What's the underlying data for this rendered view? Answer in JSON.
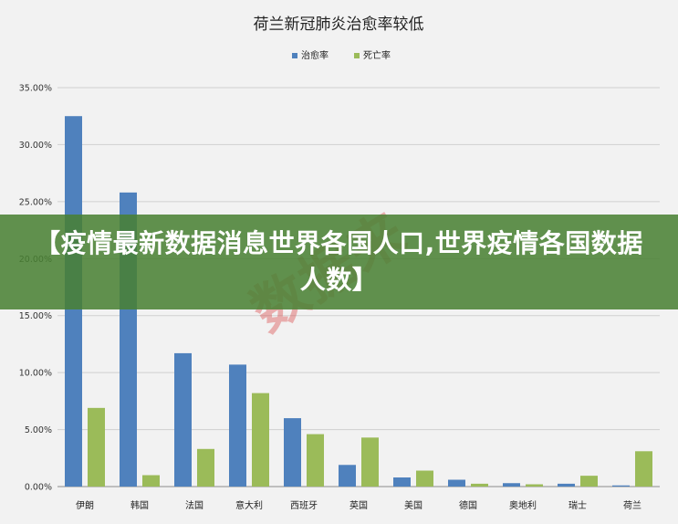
{
  "chart_data": {
    "type": "bar",
    "title": "荷兰新冠肺炎治愈率较低",
    "categories": [
      "伊朗",
      "韩国",
      "法国",
      "意大利",
      "西班牙",
      "英国",
      "美国",
      "德国",
      "奥地利",
      "瑞士",
      "荷兰"
    ],
    "series": [
      {
        "name": "治愈率",
        "color": "#4f81bd",
        "values": [
          32.5,
          25.8,
          11.7,
          10.7,
          6.0,
          1.9,
          0.8,
          0.6,
          0.3,
          0.25,
          0.1
        ]
      },
      {
        "name": "死亡率",
        "color": "#9bbb59",
        "values": [
          6.9,
          1.0,
          3.3,
          8.2,
          4.6,
          4.3,
          1.4,
          0.25,
          0.2,
          0.95,
          3.1
        ]
      }
    ],
    "ylim": [
      0,
      35
    ],
    "yticks": [
      "0.00%",
      "5.00%",
      "10.00%",
      "15.00%",
      "20.00%",
      "25.00%",
      "30.00%",
      "35.00%"
    ],
    "legend_position": "top-center",
    "grid": true
  },
  "overlay": {
    "headline": "【疫情最新数据消息世界各国人口,世界疫情各国数据人数】"
  },
  "watermark": {
    "text": "数据来"
  }
}
